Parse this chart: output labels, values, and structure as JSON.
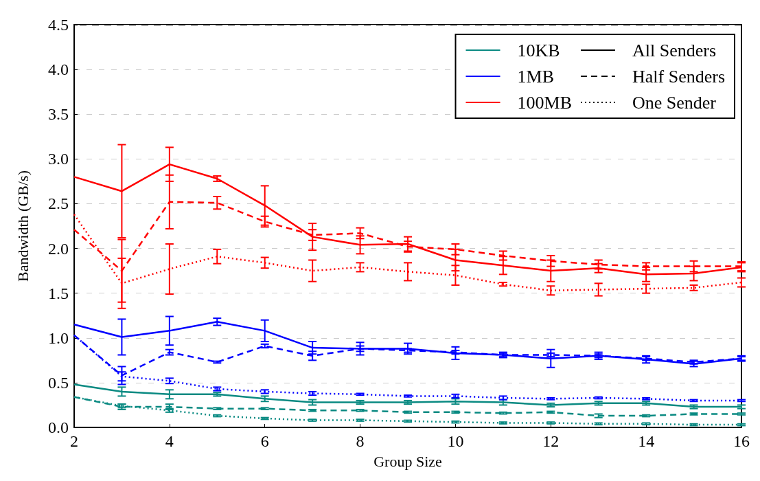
{
  "chart_data": {
    "type": "line",
    "xlabel": "Group Size",
    "ylabel": "Bandwidth (GB/s)",
    "x": [
      2,
      3,
      4,
      5,
      6,
      7,
      8,
      9,
      10,
      11,
      12,
      13,
      14,
      15,
      16
    ],
    "xlim": [
      2,
      16
    ],
    "xticks": [
      2,
      4,
      6,
      8,
      10,
      12,
      14,
      16
    ],
    "ylim": [
      0,
      4.5
    ],
    "yticks": [
      {
        "value": 0,
        "label": "0.0"
      },
      {
        "value": 0.5,
        "label": "0.5"
      },
      {
        "value": 1,
        "label": "1.0"
      },
      {
        "value": 1.5,
        "label": "1.5"
      },
      {
        "value": 2,
        "label": "2.0"
      },
      {
        "value": 2.5,
        "label": "2.5"
      },
      {
        "value": 3,
        "label": "3.0"
      },
      {
        "value": 3.5,
        "label": "3.5"
      },
      {
        "value": 4,
        "label": "4.0"
      },
      {
        "value": 4.5,
        "label": "4.5"
      }
    ],
    "grid": "y",
    "legend": "top right",
    "series": [
      {
        "name": "10KB",
        "color": "#0a8a82",
        "line_style": "solid",
        "values": [
          0.48,
          0.4,
          0.37,
          0.37,
          0.32,
          0.28,
          0.28,
          0.28,
          0.29,
          0.28,
          0.25,
          0.27,
          0.27,
          0.23,
          0.23
        ],
        "errors": [
          null,
          0.05,
          0.05,
          0.02,
          0.03,
          0.03,
          0.02,
          0.02,
          0.03,
          0.03,
          0.02,
          0.02,
          0.02,
          0.02,
          0.02
        ]
      },
      {
        "name": "1MB",
        "color": "#0000ff",
        "line_style": "solid",
        "values": [
          1.15,
          1.01,
          1.08,
          1.18,
          1.08,
          0.89,
          0.88,
          0.88,
          0.83,
          0.81,
          0.77,
          0.8,
          0.76,
          0.71,
          0.77
        ],
        "errors": [
          null,
          0.2,
          0.16,
          0.04,
          0.12,
          0.07,
          0.07,
          0.06,
          0.07,
          0.03,
          0.1,
          0.04,
          0.04,
          0.03,
          0.03
        ]
      },
      {
        "name": "100MB",
        "color": "#ff0000",
        "line_style": "solid",
        "values": [
          2.8,
          2.64,
          2.94,
          2.78,
          2.48,
          2.13,
          2.04,
          2.05,
          1.87,
          1.81,
          1.75,
          1.78,
          1.71,
          1.72,
          1.79
        ],
        "errors": [
          null,
          0.52,
          0.19,
          0.03,
          0.22,
          0.15,
          0.1,
          0.08,
          0.12,
          0.1,
          0.12,
          0.05,
          0.08,
          0.08,
          0.05
        ]
      },
      {
        "color": "#0a8a82",
        "line_style": "dashed",
        "values": [
          0.34,
          0.23,
          0.23,
          0.21,
          0.21,
          0.19,
          0.19,
          0.17,
          0.17,
          0.16,
          0.17,
          0.13,
          0.13,
          0.15,
          0.15
        ],
        "errors": [
          null,
          0.03,
          0.03,
          0.01,
          0.01,
          0.01,
          0.01,
          0.01,
          0.01,
          0.01,
          0.01,
          0.02,
          0.01,
          0.01,
          0.01
        ]
      },
      {
        "color": "#0000ff",
        "line_style": "dashed",
        "values": [
          1.03,
          0.58,
          0.84,
          0.73,
          0.91,
          0.8,
          0.88,
          0.86,
          0.84,
          0.81,
          0.81,
          0.8,
          0.77,
          0.73,
          0.77
        ],
        "errors": [
          null,
          0.1,
          0.03,
          0.01,
          0.02,
          0.05,
          0.03,
          0.02,
          0.02,
          0.02,
          0.02,
          0.02,
          0.02,
          0.02,
          0.02
        ]
      },
      {
        "color": "#ff0000",
        "line_style": "dashed",
        "values": [
          2.21,
          1.75,
          2.52,
          2.51,
          2.3,
          2.15,
          2.17,
          2.02,
          1.99,
          1.92,
          1.86,
          1.82,
          1.8,
          1.8,
          1.8
        ],
        "errors": [
          null,
          0.35,
          0.3,
          0.07,
          0.06,
          0.06,
          0.06,
          0.06,
          0.06,
          0.05,
          0.06,
          0.05,
          0.04,
          0.06,
          0.05
        ]
      },
      {
        "color": "#0a8a82",
        "line_style": "dotted",
        "values": [
          0.34,
          0.24,
          0.19,
          0.13,
          0.1,
          0.08,
          0.08,
          0.07,
          0.06,
          0.05,
          0.05,
          0.04,
          0.04,
          0.03,
          0.03
        ],
        "errors": [
          null,
          0.02,
          0.02,
          0.01,
          0.01,
          0.01,
          0.01,
          0.01,
          0.01,
          0.01,
          0.01,
          0.01,
          0.01,
          0.01,
          0.01
        ]
      },
      {
        "color": "#0000ff",
        "line_style": "dotted",
        "values": [
          1.03,
          0.57,
          0.52,
          0.43,
          0.4,
          0.38,
          0.37,
          0.35,
          0.35,
          0.33,
          0.32,
          0.33,
          0.32,
          0.3,
          0.3
        ],
        "errors": [
          null,
          0.05,
          0.03,
          0.02,
          0.02,
          0.02,
          0.01,
          0.01,
          0.02,
          0.02,
          0.01,
          0.01,
          0.01,
          0.01,
          0.01
        ]
      },
      {
        "color": "#ff0000",
        "line_style": "dotted",
        "values": [
          2.38,
          1.61,
          1.77,
          1.91,
          1.84,
          1.75,
          1.79,
          1.74,
          1.7,
          1.6,
          1.53,
          1.54,
          1.55,
          1.56,
          1.62
        ],
        "errors": [
          null,
          0.28,
          0.28,
          0.08,
          0.06,
          0.12,
          0.05,
          0.1,
          0.11,
          0.02,
          0.05,
          0.07,
          0.05,
          0.03,
          0.05
        ]
      },
      {
        "name": "All Senders",
        "color": "#000000",
        "line_style": "solid",
        "values": [
          null,
          null,
          null,
          null,
          null,
          null,
          null,
          null,
          null,
          null,
          null,
          null,
          null,
          null,
          null
        ]
      },
      {
        "name": "Half Senders",
        "color": "#000000",
        "line_style": "dashed",
        "values": [
          null,
          null,
          null,
          null,
          null,
          null,
          null,
          null,
          null,
          null,
          null,
          null,
          null,
          null,
          null
        ]
      },
      {
        "name": "One Sender",
        "color": "#000000",
        "line_style": "dotted",
        "values": [
          null,
          null,
          null,
          null,
          null,
          null,
          null,
          null,
          null,
          null,
          null,
          null,
          null,
          null,
          null
        ]
      }
    ]
  }
}
